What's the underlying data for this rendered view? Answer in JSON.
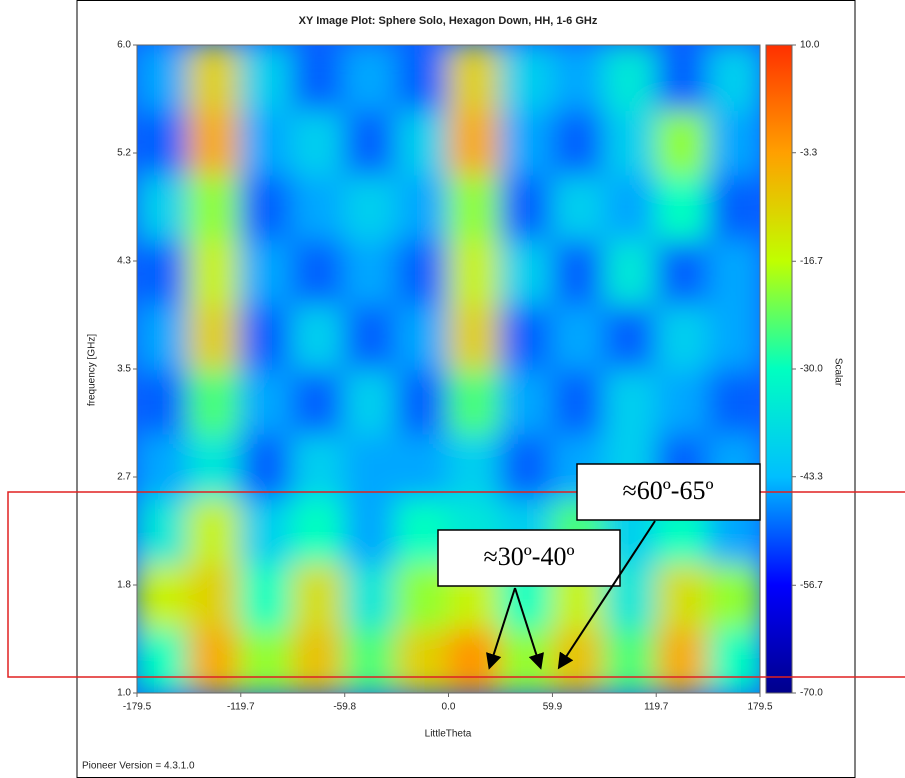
{
  "chart_data": {
    "type": "heatmap",
    "title": "XY Image Plot: Sphere Solo, Hexagon Down, HH, 1-6 GHz",
    "x_label": "LittleTheta",
    "y_label": "frequency [GHz]",
    "colorbar_label": "Scalar",
    "footer": "Pioneer Version = 4.3.1.0",
    "annotations": [
      "≈60º-65º",
      "≈30º-40º"
    ],
    "x": [
      -165,
      -135,
      -105,
      -75,
      -45,
      -15,
      15,
      45,
      75,
      105,
      135,
      165
    ],
    "y": [
      1.25,
      1.75,
      2.25,
      2.75,
      3.25,
      3.75,
      4.25,
      4.75,
      5.25,
      5.75
    ],
    "values": [
      [
        -30,
        -5,
        -20,
        -8,
        -25,
        -10,
        -2,
        -20,
        -8,
        -25,
        -5,
        -30
      ],
      [
        -15,
        -10,
        -30,
        -12,
        -35,
        -20,
        -15,
        -30,
        -15,
        -35,
        -12,
        -20
      ],
      [
        -35,
        -15,
        -40,
        -30,
        -45,
        -30,
        -35,
        -40,
        -25,
        -40,
        -30,
        -45
      ],
      [
        -45,
        -35,
        -50,
        -40,
        -45,
        -45,
        -40,
        -50,
        -45,
        -40,
        -50,
        -45
      ],
      [
        -50,
        -25,
        -45,
        -50,
        -40,
        -50,
        -25,
        -45,
        -50,
        -40,
        -45,
        -50
      ],
      [
        -45,
        -10,
        -50,
        -40,
        -50,
        -45,
        -10,
        -50,
        -45,
        -50,
        -40,
        -45
      ],
      [
        -50,
        -15,
        -45,
        -50,
        -45,
        -50,
        -15,
        -40,
        -50,
        -35,
        -50,
        -45
      ],
      [
        -40,
        -20,
        -50,
        -45,
        -40,
        -45,
        -20,
        -50,
        -40,
        -45,
        -30,
        -50
      ],
      [
        -50,
        -5,
        -45,
        -40,
        -50,
        -40,
        -5,
        -45,
        -50,
        -40,
        -20,
        -45
      ],
      [
        -45,
        -10,
        -40,
        -50,
        -45,
        -50,
        -10,
        -40,
        -45,
        -35,
        -50,
        -40
      ]
    ],
    "xlim": [
      -179.5,
      179.5
    ],
    "xticks": [
      -179.5,
      -119.7,
      -59.8,
      {
        "value": 0,
        "label": "0.0"
      },
      59.9,
      119.7,
      179.5
    ],
    "ylim": [
      1,
      6
    ],
    "yticks": [
      {
        "value": 1,
        "label": "1.0"
      },
      {
        "value": 1.8333,
        "label": "1.8"
      },
      {
        "value": 2.6667,
        "label": "2.7"
      },
      3.5,
      {
        "value": 4.3333,
        "label": "4.3"
      },
      {
        "value": 5.1667,
        "label": "5.2"
      },
      {
        "value": 6,
        "label": "6.0"
      }
    ],
    "y2lim": [
      -70,
      10
    ],
    "y2ticks": [
      {
        "value": 10,
        "label": "10.0"
      },
      -3.3,
      -16.7,
      {
        "value": -30,
        "label": "-30.0"
      },
      -43.3,
      -56.7,
      {
        "value": -70,
        "label": "-70.0"
      }
    ],
    "colormap": [
      "#00008b",
      "#0000ff",
      "#00bfff",
      "#00ffc0",
      "#c0ff00",
      "#ffa000",
      "#ff3000"
    ]
  }
}
